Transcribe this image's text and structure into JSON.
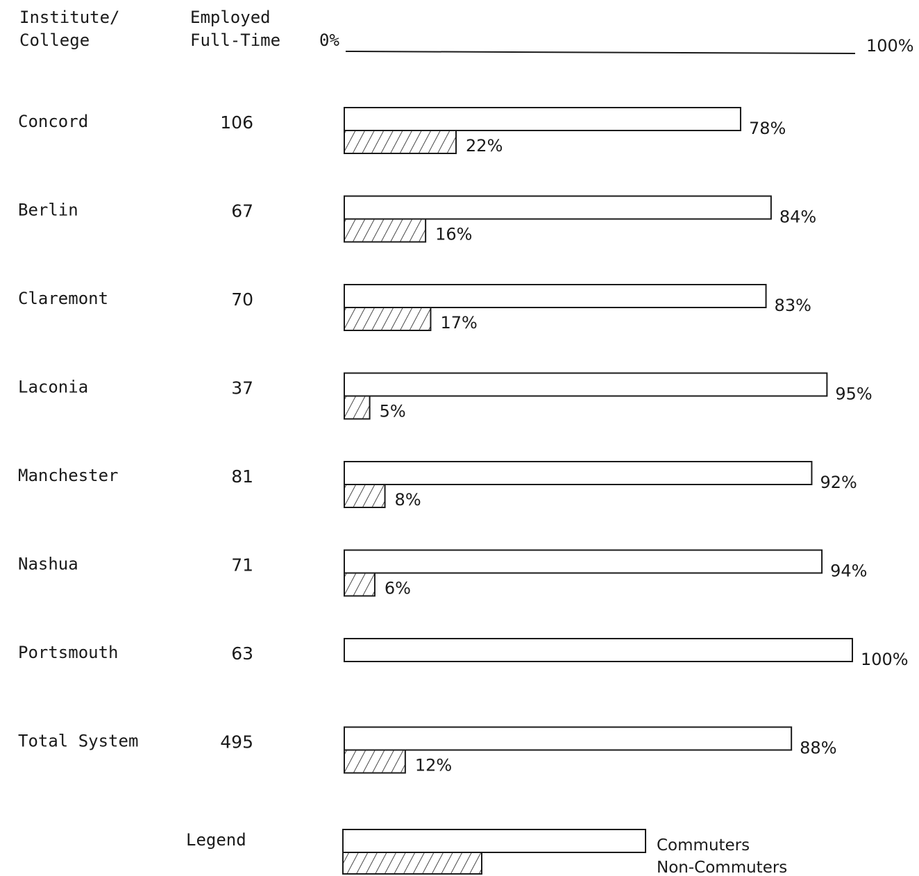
{
  "chart_data": {
    "type": "bar",
    "columns": {
      "institute": "Institute/\nCollege",
      "employed": "Employed\nFull-Time"
    },
    "axis": {
      "min_label": "0%",
      "max_label": "100%",
      "xlim": [
        0,
        100
      ]
    },
    "rows": [
      {
        "name": "Concord",
        "employed": "106",
        "commuters": 78,
        "commuters_label": "78%",
        "non_commuters": 22,
        "non_commuters_label": "22%"
      },
      {
        "name": "Berlin",
        "employed": "67",
        "commuters": 84,
        "commuters_label": "84%",
        "non_commuters": 16,
        "non_commuters_label": "16%"
      },
      {
        "name": "Claremont",
        "employed": "70",
        "commuters": 83,
        "commuters_label": "83%",
        "non_commuters": 17,
        "non_commuters_label": "17%"
      },
      {
        "name": "Laconia",
        "employed": "37",
        "commuters": 95,
        "commuters_label": "95%",
        "non_commuters": 5,
        "non_commuters_label": "5%"
      },
      {
        "name": "Manchester",
        "employed": "81",
        "commuters": 92,
        "commuters_label": "92%",
        "non_commuters": 8,
        "non_commuters_label": "8%"
      },
      {
        "name": "Nashua",
        "employed": "71",
        "commuters": 94,
        "commuters_label": "94%",
        "non_commuters": 6,
        "non_commuters_label": "6%"
      },
      {
        "name": "Portsmouth",
        "employed": "63",
        "commuters": 100,
        "commuters_label": "100%",
        "non_commuters": 0,
        "non_commuters_label": ""
      },
      {
        "name": "Total System",
        "employed": "495",
        "commuters": 88,
        "commuters_label": "88%",
        "non_commuters": 12,
        "non_commuters_label": "12%"
      }
    ],
    "legend": {
      "title": "Legend",
      "commuters": "Commuters",
      "non_commuters": "Non-Commuters"
    },
    "colors": {
      "ink": "#1a1a1a",
      "background": "#ffffff"
    }
  }
}
